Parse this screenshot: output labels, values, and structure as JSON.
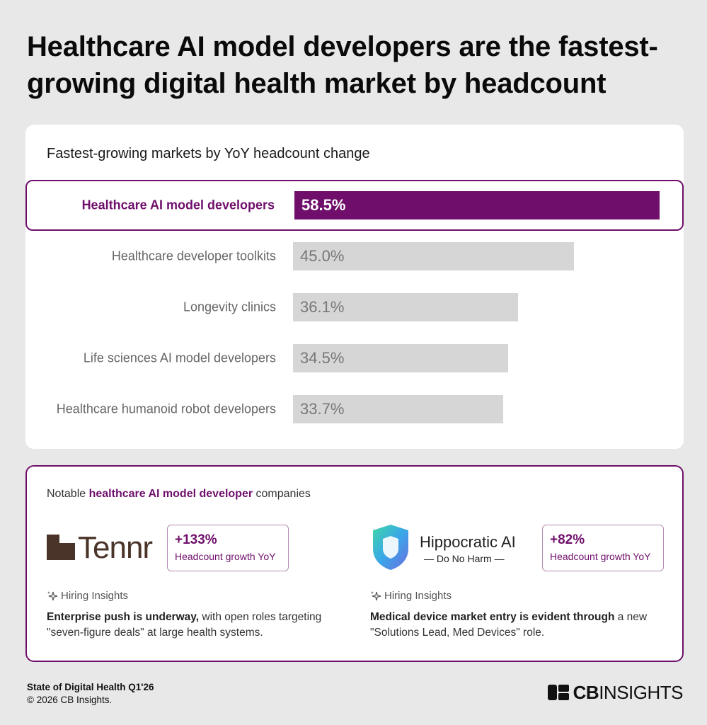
{
  "headline": "Healthcare AI model developers are the fastest-growing digital health market by headcount",
  "chart_data": {
    "type": "bar",
    "orientation": "horizontal",
    "title": "Fastest-growing markets by YoY headcount change",
    "categories": [
      "Healthcare AI model developers",
      "Healthcare developer toolkits",
      "Longevity clinics",
      "Life sciences AI model developers",
      "Healthcare humanoid robot developers"
    ],
    "values": [
      58.5,
      45.0,
      36.1,
      34.5,
      33.7
    ],
    "value_labels": [
      "58.5%",
      "45.0%",
      "36.1%",
      "34.5%",
      "33.7%"
    ],
    "highlight_index": 0,
    "xlim": [
      0,
      60
    ],
    "colors": {
      "highlight": "#6f0f6b",
      "default": "#d6d6d6"
    }
  },
  "companies": {
    "title_prefix": "Notable ",
    "title_highlight": "healthcare AI model developer",
    "title_suffix": " companies",
    "items": [
      {
        "name": "Tennr",
        "tagline": "",
        "growth_pct": "+133%",
        "growth_label": "Headcount growth YoY",
        "insight_heading": "Hiring Insights",
        "insight_bold": "Enterprise push is underway,",
        "insight_text": " with open roles targeting \"seven-figure deals\" at large health systems."
      },
      {
        "name": "Hippocratic AI",
        "tagline": "— Do No Harm —",
        "growth_pct": "+82%",
        "growth_label": "Headcount growth YoY",
        "insight_heading": "Hiring Insights",
        "insight_bold": "Medical device market entry is evident through",
        "insight_text": " a new \"Solutions Lead, Med Devices\" role."
      }
    ]
  },
  "footer": {
    "source": "State of Digital Health Q1'26",
    "copyright": "© 2026 CB Insights.",
    "brand_bold": "CB",
    "brand_rest": "INSIGHTS"
  },
  "colors": {
    "accent": "#6f0f6b",
    "tennr_brown": "#4a3429"
  }
}
